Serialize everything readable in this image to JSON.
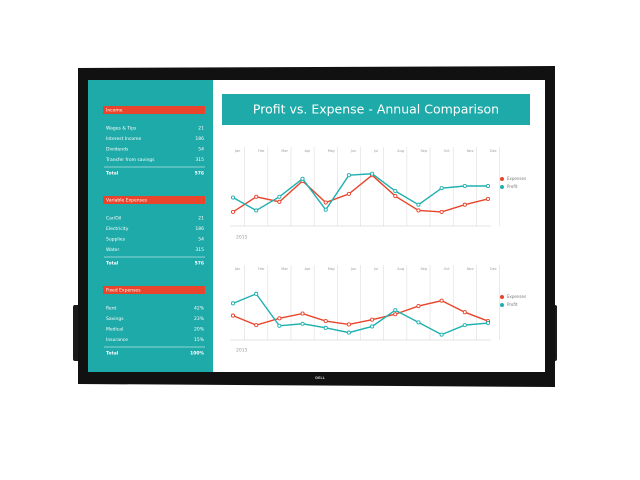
{
  "sidebar": {
    "sections": [
      {
        "title": "Income",
        "items": [
          {
            "label": "Wages & Tips",
            "value": "21"
          },
          {
            "label": "Interest Income",
            "value": "186"
          },
          {
            "label": "Dividends",
            "value": "54"
          },
          {
            "label": "Transfer from savings",
            "value": "315"
          }
        ],
        "total": {
          "label": "Total",
          "value": "576"
        }
      },
      {
        "title": "Variable Expenses",
        "items": [
          {
            "label": "Car/Oil",
            "value": "21"
          },
          {
            "label": "Electricity",
            "value": "186"
          },
          {
            "label": "Supplies",
            "value": "54"
          },
          {
            "label": "Water",
            "value": "315"
          }
        ],
        "total": {
          "label": "Total",
          "value": "576"
        }
      },
      {
        "title": "Fixed Expenses",
        "items": [
          {
            "label": "Rent",
            "value": "42%"
          },
          {
            "label": "Savings",
            "value": "23%"
          },
          {
            "label": "Medical",
            "value": "20%"
          },
          {
            "label": "Insurance",
            "value": "15%"
          }
        ],
        "total": {
          "label": "Total",
          "value": "100%"
        }
      }
    ]
  },
  "header": {
    "title": "Profit vs. Expense - Annual Comparison"
  },
  "brand": "DELL",
  "chart_data": [
    {
      "type": "line",
      "subtitle": "2015",
      "categories": [
        "Jan",
        "Feb",
        "Mar",
        "Apr",
        "May",
        "Jun",
        "Jul",
        "Aug",
        "Sep",
        "Oct",
        "Nov",
        "Dec"
      ],
      "ylim": [
        0,
        100
      ],
      "legend": "right",
      "series": [
        {
          "name": "Expenses",
          "color": "#e8452c",
          "values": [
            14,
            35,
            28,
            57,
            27,
            39,
            65,
            36,
            16,
            14,
            24,
            32
          ]
        },
        {
          "name": "Profit",
          "color": "#1fb0b0",
          "values": [
            34,
            16,
            35,
            60,
            17,
            65,
            67,
            43,
            24,
            47,
            50,
            50
          ]
        }
      ]
    },
    {
      "type": "line",
      "subtitle": "2015",
      "categories": [
        "Jan",
        "Feb",
        "Mar",
        "Apr",
        "May",
        "Jun",
        "Jul",
        "Aug",
        "Sep",
        "Oct",
        "Nov",
        "Dec"
      ],
      "ylim": [
        0,
        100
      ],
      "legend": "right",
      "series": [
        {
          "name": "Expenses",
          "color": "#e8452c",
          "values": [
            30,
            16,
            26,
            33,
            22,
            17,
            24,
            32,
            44,
            52,
            35,
            22
          ]
        },
        {
          "name": "Profit",
          "color": "#1fb0b0",
          "values": [
            48,
            62,
            15,
            18,
            12,
            5,
            14,
            38,
            20,
            2,
            16,
            19
          ]
        }
      ]
    }
  ]
}
